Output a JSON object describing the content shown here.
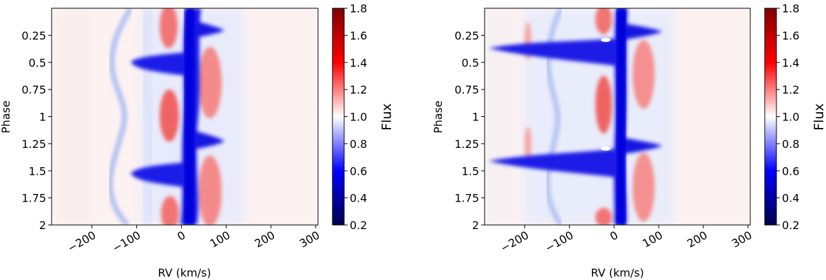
{
  "chart_data": [
    {
      "type": "heatmap",
      "xlabel": "RV (km/s)",
      "ylabel": "Phase",
      "xlim": [
        -290,
        305
      ],
      "ylim": [
        2.0,
        0.0
      ],
      "y_inverted": true,
      "xticks": [
        -200,
        -100,
        0,
        100,
        200,
        300
      ],
      "xtick_labels": [
        "−200",
        "−100",
        "0",
        "100",
        "200",
        "300"
      ],
      "yticks": [
        0.25,
        0.5,
        0.75,
        1.0,
        1.25,
        1.5,
        1.75,
        2.0
      ],
      "ytick_labels": [
        "0.25",
        "0.5",
        "0.75",
        "1",
        "1.25",
        "1.5",
        "1.75",
        "2"
      ],
      "colorbar": {
        "label": "Flux",
        "range": [
          0.2,
          1.8
        ],
        "ticks": [
          0.2,
          0.4,
          0.6,
          0.8,
          1.0,
          1.2,
          1.4,
          1.6,
          1.8
        ],
        "tick_labels": [
          "0.2",
          "0.4",
          "0.6",
          "0.8",
          "1.0",
          "1.2",
          "1.4",
          "1.6",
          "1.8"
        ],
        "colormap": "seismic"
      },
      "features": {
        "central_absorption": {
          "rv_center": 20,
          "rv_halfwidth": 12,
          "flux": 0.3
        },
        "absorption_spikes": [
          {
            "phase": 0.23,
            "rv_from": 30,
            "rv_to": 75,
            "flux": 0.4
          },
          {
            "phase": 0.55,
            "rv_from": -130,
            "rv_to": 10,
            "flux": 0.45
          },
          {
            "phase": 1.22,
            "rv_from": 30,
            "rv_to": 75,
            "flux": 0.4
          },
          {
            "phase": 1.5,
            "rv_from": -130,
            "rv_to": 10,
            "flux": 0.45
          }
        ],
        "emission_lobes": [
          {
            "rv": 60,
            "phase_from": 0.55,
            "phase_to": 1.05,
            "flux": 1.3
          },
          {
            "rv": 60,
            "phase_from": 1.45,
            "phase_to": 2.0,
            "flux": 1.3
          },
          {
            "rv": -25,
            "phase_from": 0.0,
            "phase_to": 0.35,
            "flux": 1.3
          },
          {
            "rv": -25,
            "phase_from": 0.8,
            "phase_to": 1.3,
            "flux": 1.3
          },
          {
            "rv": -25,
            "phase_from": 1.7,
            "phase_to": 2.0,
            "flux": 1.3
          }
        ],
        "wandering_absorption_track": {
          "rv_mean": -105,
          "rv_amplitude": 45,
          "period": 1.0,
          "flux": 0.85
        }
      }
    },
    {
      "type": "heatmap",
      "xlabel": "RV (km/s)",
      "ylabel": "Phase",
      "xlim": [
        -290,
        305
      ],
      "ylim": [
        2.0,
        0.0
      ],
      "y_inverted": true,
      "xticks": [
        -200,
        -100,
        0,
        100,
        200,
        300
      ],
      "xtick_labels": [
        "−200",
        "−100",
        "0",
        "100",
        "200",
        "300"
      ],
      "yticks": [
        0.25,
        0.5,
        0.75,
        1.0,
        1.25,
        1.5,
        1.75,
        2.0
      ],
      "ytick_labels": [
        "0.25",
        "0.5",
        "0.75",
        "1",
        "1.25",
        "1.5",
        "1.75",
        "2"
      ],
      "colorbar": {
        "label": "Flux",
        "range": [
          0.2,
          1.8
        ],
        "ticks": [
          0.2,
          0.4,
          0.6,
          0.8,
          1.0,
          1.2,
          1.4,
          1.6,
          1.8
        ],
        "tick_labels": [
          "0.2",
          "0.4",
          "0.6",
          "0.8",
          "1.0",
          "1.2",
          "1.4",
          "1.6",
          "1.8"
        ],
        "colormap": "seismic"
      },
      "features": {
        "central_absorption": {
          "rv_center": 20,
          "rv_halfwidth": 12,
          "flux": 0.3
        },
        "absorption_spikes": [
          {
            "phase": 0.23,
            "rv_from": 30,
            "rv_to": 75,
            "flux": 0.4
          },
          {
            "phase": 0.5,
            "rv_from": -260,
            "rv_to": 10,
            "flux": 0.45
          },
          {
            "phase": 1.22,
            "rv_from": 30,
            "rv_to": 75,
            "flux": 0.4
          },
          {
            "phase": 1.45,
            "rv_from": -270,
            "rv_to": 10,
            "flux": 0.45
          }
        ],
        "emission_lobes": [
          {
            "rv": 60,
            "phase_from": 0.3,
            "phase_to": 1.05,
            "flux": 1.3
          },
          {
            "rv": 60,
            "phase_from": 1.35,
            "phase_to": 2.0,
            "flux": 1.3
          },
          {
            "rv": -20,
            "phase_from": 0.0,
            "phase_to": 0.2,
            "flux": 1.3
          },
          {
            "rv": -20,
            "phase_from": 0.75,
            "phase_to": 1.15,
            "flux": 1.3
          },
          {
            "rv": -20,
            "phase_from": 1.85,
            "phase_to": 2.0,
            "flux": 1.3
          }
        ],
        "wandering_absorption_track": {
          "rv_mean": -120,
          "rv_amplitude": 35,
          "period": 1.0,
          "flux": 0.85
        }
      }
    }
  ]
}
